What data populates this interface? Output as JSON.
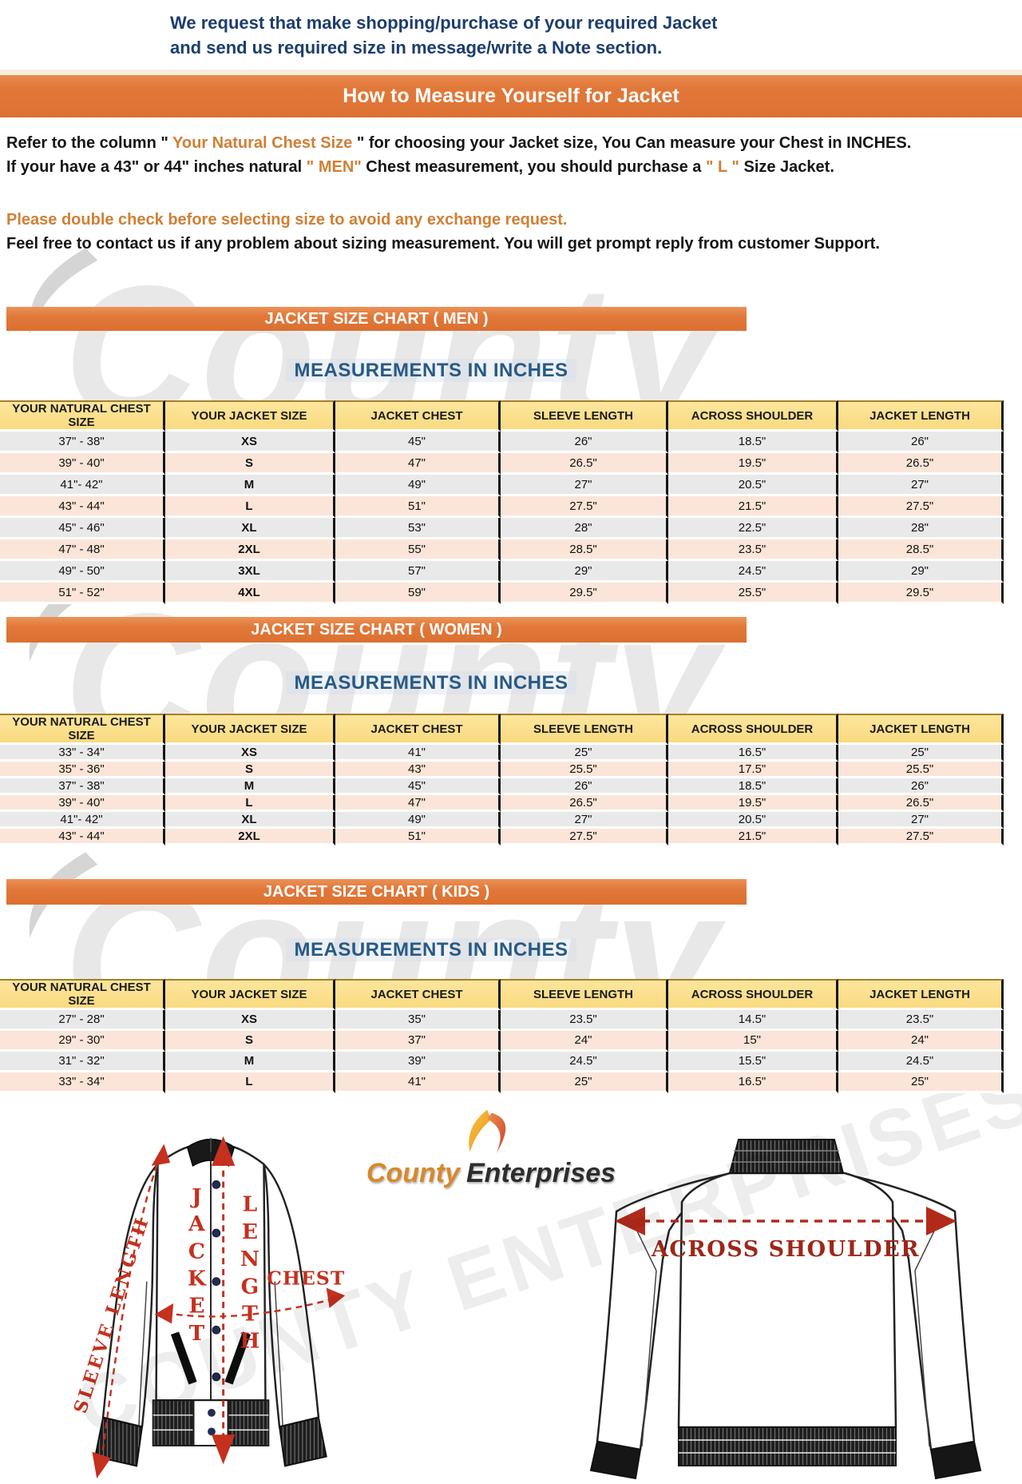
{
  "notice": {
    "line1": "We request that make shopping/purchase of your required Jacket",
    "line2": "and send us required size in message/write a Note section."
  },
  "banner": {
    "title": "How to Measure Yourself for Jacket"
  },
  "intro": {
    "p1a": "Refer to the column \" ",
    "p1b": "Your Natural Chest Size",
    "p1c": " \" for choosing your Jacket size, You Can measure your Chest in INCHES.",
    "p2a": "If your have a 43\" or 44\"  inches natural ",
    "p2b": "\" MEN\"",
    "p2c": " Chest measurement, you should purchase a ",
    "p2d": "\" L \"",
    "p2e": " Size Jacket.",
    "warning": "Please double check before selecting size to avoid any exchange request.",
    "contact": "Feel free to contact us if any problem about sizing measurement. You will get prompt reply from customer Support."
  },
  "sections_subtitle": "MEASUREMENTS IN INCHES",
  "tables": {
    "columns": [
      "YOUR NATURAL CHEST SIZE",
      "YOUR JACKET SIZE",
      "JACKET CHEST",
      "SLEEVE LENGTH",
      "ACROSS SHOULDER",
      "JACKET LENGTH"
    ],
    "men": {
      "title": "JACKET SIZE CHART ( MEN )",
      "rows": [
        [
          "37\" - 38\"",
          "XS",
          "45\"",
          "26\"",
          "18.5\"",
          "26\""
        ],
        [
          "39\" - 40\"",
          "S",
          "47\"",
          "26.5\"",
          "19.5\"",
          "26.5\""
        ],
        [
          "41\"- 42\"",
          "M",
          "49\"",
          "27\"",
          "20.5\"",
          "27\""
        ],
        [
          "43\" - 44\"",
          "L",
          "51\"",
          "27.5\"",
          "21.5\"",
          "27.5\""
        ],
        [
          "45\" - 46\"",
          "XL",
          "53\"",
          "28\"",
          "22.5\"",
          "28\""
        ],
        [
          "47\" - 48\"",
          "2XL",
          "55\"",
          "28.5\"",
          "23.5\"",
          "28.5\""
        ],
        [
          "49\" - 50\"",
          "3XL",
          "57\"",
          "29\"",
          "24.5\"",
          "29\""
        ],
        [
          "51\" - 52\"",
          "4XL",
          "59\"",
          "29.5\"",
          "25.5\"",
          "29.5\""
        ]
      ]
    },
    "women": {
      "title": "JACKET SIZE CHART ( WOMEN )",
      "rows": [
        [
          "33\" - 34\"",
          "XS",
          "41\"",
          "25\"",
          "16.5\"",
          "25\""
        ],
        [
          "35\" - 36\"",
          "S",
          "43\"",
          "25.5\"",
          "17.5\"",
          "25.5\""
        ],
        [
          "37\" - 38\"",
          "M",
          "45\"",
          "26\"",
          "18.5\"",
          "26\""
        ],
        [
          "39\" - 40\"",
          "L",
          "47\"",
          "26.5\"",
          "19.5\"",
          "26.5\""
        ],
        [
          "41\"- 42\"",
          "XL",
          "49\"",
          "27\"",
          "20.5\"",
          "27\""
        ],
        [
          "43\" - 44\"",
          "2XL",
          "51\"",
          "27.5\"",
          "21.5\"",
          "27.5\""
        ]
      ]
    },
    "kids": {
      "title": "JACKET SIZE CHART ( KIDS )",
      "rows": [
        [
          "27\" - 28\"",
          "XS",
          "35\"",
          "23.5\"",
          "14.5\"",
          "23.5\""
        ],
        [
          "29\" - 30\"",
          "S",
          "37\"",
          "24\"",
          "15\"",
          "24\""
        ],
        [
          "31\" - 32\"",
          "M",
          "39\"",
          "24.5\"",
          "15.5\"",
          "24.5\""
        ],
        [
          "33\" - 34\"",
          "L",
          "41\"",
          "25\"",
          "16.5\"",
          "25\""
        ]
      ]
    }
  },
  "diagram": {
    "front": {
      "sleeve_label": "SLEEVE LENGTH",
      "jacket_word": "JACKET",
      "length_word": "LENGTH",
      "chest_label": "CHEST"
    },
    "back": {
      "across_label": "ACROSS SHOULDER"
    },
    "logo": {
      "word1": "County",
      "word2": "Enterprises"
    }
  },
  "watermarks": {
    "section_word": "County",
    "bottom_text": "COUNTY ENTERPRISES"
  },
  "colors": {
    "banner_orange": "#e1783a",
    "accent_orange": "#d07f35",
    "navy_text": "#1d3d6e",
    "heading_blue": "#265a86",
    "header_yellow": "#fbdf8b",
    "row_gray": "#e9e9e9",
    "row_peach": "#fbe5d8",
    "diagram_red": "#c5301f",
    "across_red": "#9e2619",
    "logo_orange": "#d8882a"
  }
}
